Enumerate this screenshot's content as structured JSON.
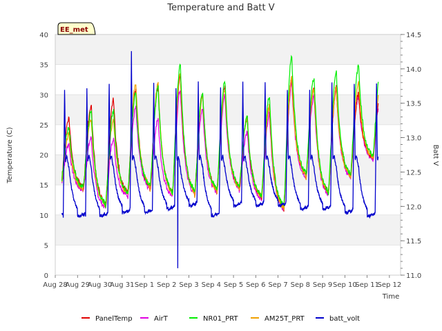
{
  "chart_data": {
    "type": "line",
    "title": "Temperature and Batt V",
    "badge": "EE_met",
    "xlabel": "Time",
    "ylabel": "Temperature (C)",
    "y2label": "Batt V",
    "ylim": [
      0,
      40
    ],
    "y2lim": [
      11.0,
      14.5
    ],
    "xlim": [
      0,
      15.5
    ],
    "x_ticks": [
      "Aug 28",
      "Aug 29",
      "Aug 30",
      "Aug 31",
      "Sep 1",
      "Sep 2",
      "Sep 3",
      "Sep 4",
      "Sep 5",
      "Sep 6",
      "Sep 7",
      "Sep 8",
      "Sep 9",
      "Sep 10",
      "Sep 11",
      "Sep 12"
    ],
    "y_ticks": [
      "0",
      "5",
      "10",
      "15",
      "20",
      "25",
      "30",
      "35",
      "40"
    ],
    "y2_ticks": [
      "11.0",
      "11.5",
      "12.0",
      "12.5",
      "13.0",
      "13.5",
      "14.0",
      "14.5"
    ],
    "day_minmax": {
      "min": [
        14.5,
        14,
        11,
        13,
        14,
        13,
        13,
        13.5,
        14,
        12.5,
        10.5,
        16,
        13,
        16,
        19
      ],
      "PanelTemp": [
        26,
        28,
        29,
        30.5,
        31,
        33,
        30,
        31,
        26,
        28,
        32.5,
        31,
        31,
        30
      ],
      "AirT": [
        22,
        23,
        23,
        28,
        26,
        31,
        28,
        30,
        24,
        27,
        32,
        30,
        31,
        30
      ],
      "NR01_PRT": [
        24.5,
        27,
        27,
        30,
        31,
        34.5,
        30,
        32,
        26,
        29.5,
        36,
        32.5,
        33.5,
        34.5
      ],
      "AM25T_PRT": [
        23.5,
        26,
        26,
        32,
        32,
        33.5,
        30,
        31,
        26,
        28,
        33,
        31,
        31,
        32
      ]
    },
    "batt_peaks": [
      13.7,
      13.7,
      13.8,
      14.25,
      13.8,
      13.7,
      13.8,
      13.75,
      13.8,
      13.8,
      13.7,
      13.7,
      13.8,
      13.8
    ],
    "batt_troughs": [
      11.85,
      11.85,
      11.9,
      11.9,
      11.95,
      12.0,
      11.85,
      12.0,
      12.0,
      12.0,
      11.95,
      11.95,
      11.9,
      11.85
    ],
    "batt_dip": {
      "x": 5.5,
      "value": 11.1
    },
    "series": [
      {
        "name": "PanelTemp",
        "color": "#e00000"
      },
      {
        "name": "AirT",
        "color": "#e000e0"
      },
      {
        "name": "NR01_PRT",
        "color": "#00ee00"
      },
      {
        "name": "AM25T_PRT",
        "color": "#f0a000"
      },
      {
        "name": "batt_volt",
        "color": "#0000cc"
      }
    ]
  }
}
